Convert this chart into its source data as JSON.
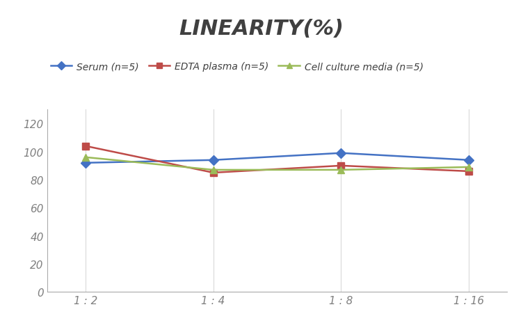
{
  "title": "LINEARITY(%)",
  "x_labels": [
    "1 : 2",
    "1 : 4",
    "1 : 8",
    "1 : 16"
  ],
  "x_positions": [
    0,
    1,
    2,
    3
  ],
  "series": [
    {
      "label": "Serum (n=5)",
      "values": [
        92,
        94,
        99,
        94
      ],
      "color": "#4472C4",
      "marker": "D",
      "markersize": 7,
      "linewidth": 1.8
    },
    {
      "label": "EDTA plasma (n=5)",
      "values": [
        104,
        85,
        90,
        86
      ],
      "color": "#BE4B48",
      "marker": "s",
      "markersize": 7,
      "linewidth": 1.8
    },
    {
      "label": "Cell culture media (n=5)",
      "values": [
        96,
        87,
        87,
        89
      ],
      "color": "#9BBB59",
      "marker": "^",
      "markersize": 7,
      "linewidth": 1.8
    }
  ],
  "ylim": [
    0,
    130
  ],
  "yticks": [
    0,
    20,
    40,
    60,
    80,
    100,
    120
  ],
  "grid_color": "#D9D9D9",
  "background_color": "#FFFFFF",
  "title_fontsize": 22,
  "title_fontstyle": "italic",
  "title_fontweight": "bold",
  "title_color": "#404040",
  "legend_fontsize": 10,
  "tick_fontsize": 11,
  "tick_color": "#808080"
}
